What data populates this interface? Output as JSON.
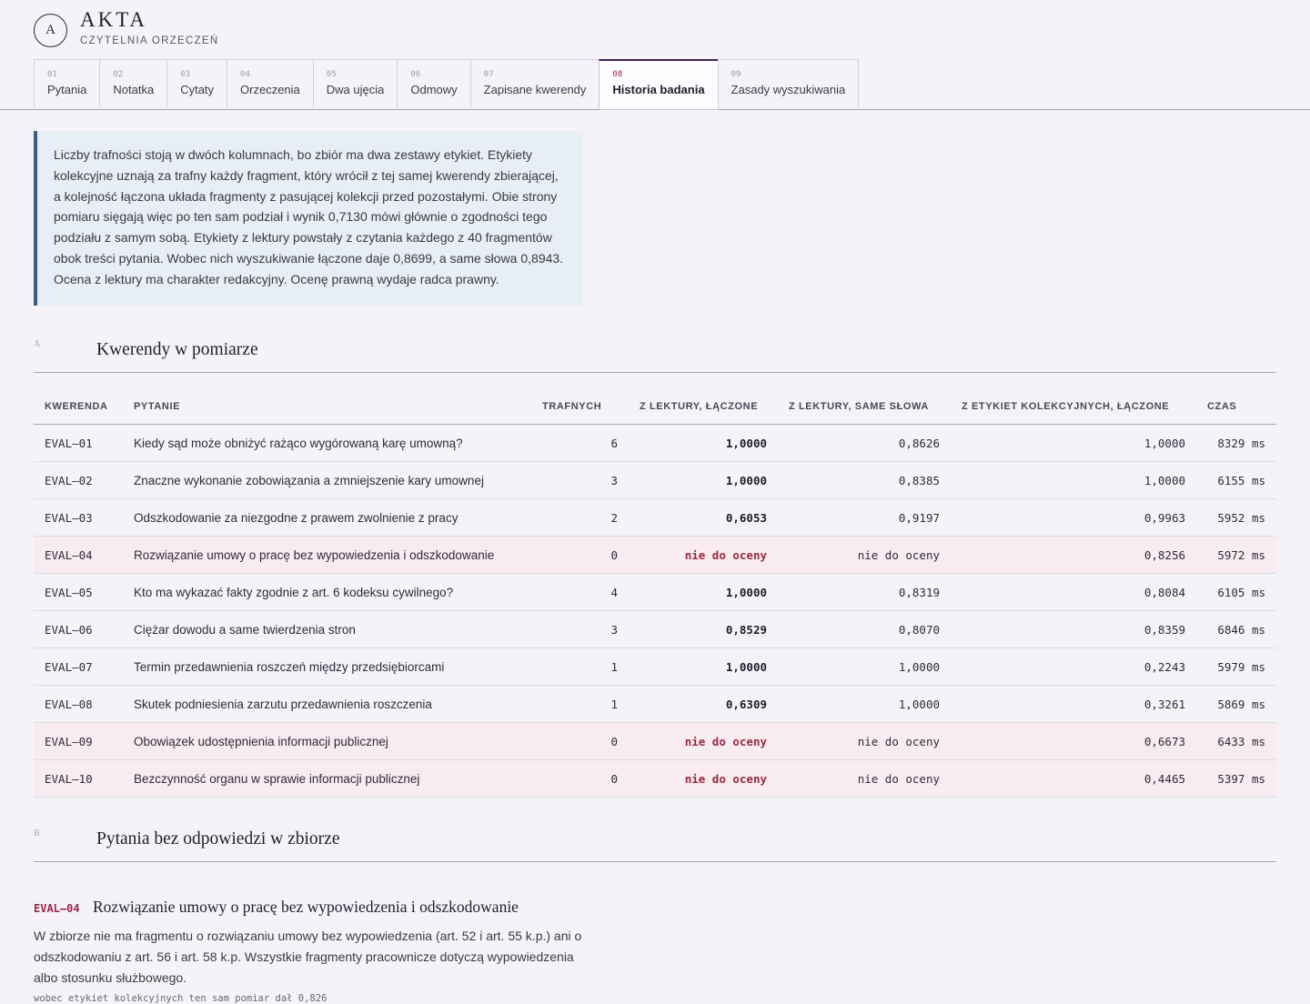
{
  "brand": {
    "logo_letter": "A",
    "name": "AKTA",
    "subtitle": "CZYTELNIA ORZECZEŃ"
  },
  "tabs": [
    {
      "num": "01",
      "label": "Pytania"
    },
    {
      "num": "02",
      "label": "Notatka"
    },
    {
      "num": "03",
      "label": "Cytaty"
    },
    {
      "num": "04",
      "label": "Orzeczenia"
    },
    {
      "num": "05",
      "label": "Dwa ujęcia"
    },
    {
      "num": "06",
      "label": "Odmowy"
    },
    {
      "num": "07",
      "label": "Zapisane kwerendy"
    },
    {
      "num": "08",
      "label": "Historia badania",
      "active": true
    },
    {
      "num": "09",
      "label": "Zasady wyszukiwania"
    }
  ],
  "info_note": "Liczby trafności stoją w dwóch kolumnach, bo zbiór ma dwa zestawy etykiet. Etykiety kolekcyjne uznają za trafny każdy fragment, który wrócił z tej samej kwerendy zbierającej, a kolejność łączona układa fragmenty z pasującej kolekcji przed pozostałymi. Obie strony pomiaru sięgają więc po ten sam podział i wynik 0,7130 mówi głównie o zgodności tego podziału z samym sobą. Etykiety z lektury powstały z czytania każdego z 40 fragmentów obok treści pytania. Wobec nich wyszukiwanie łączone daje 0,8699, a same słowa 0,8943. Ocena z lektury ma charakter redakcyjny. Ocenę prawną wydaje radca prawny.",
  "section_a": {
    "letter": "A",
    "title": "Kwerendy w pomiarze"
  },
  "table": {
    "columns": [
      "KWERENDA",
      "PYTANIE",
      "TRAFNYCH",
      "Z LEKTURY, ŁĄCZONE",
      "Z LEKTURY, SAME SŁOWA",
      "Z ETYKIET KOLEKCYJNYCH, ŁĄCZONE",
      "CZAS"
    ],
    "rows": [
      {
        "id": "EVAL–01",
        "question": "Kiedy sąd może obniżyć rażąco wygórowaną karę umowną?",
        "hits": "6",
        "read_combined": "1,0000",
        "read_words": "0,8626",
        "coll_combined": "1,0000",
        "time": "8329 ms",
        "na": false
      },
      {
        "id": "EVAL–02",
        "question": "Znaczne wykonanie zobowiązania a zmniejszenie kary umownej",
        "hits": "3",
        "read_combined": "1,0000",
        "read_words": "0,8385",
        "coll_combined": "1,0000",
        "time": "6155 ms",
        "na": false
      },
      {
        "id": "EVAL–03",
        "question": "Odszkodowanie za niezgodne z prawem zwolnienie z pracy",
        "hits": "2",
        "read_combined": "0,6053",
        "read_words": "0,9197",
        "coll_combined": "0,9963",
        "time": "5952 ms",
        "na": false
      },
      {
        "id": "EVAL–04",
        "question": "Rozwiązanie umowy o pracę bez wypowiedzenia i odszkodowanie",
        "hits": "0",
        "read_combined": "nie do oceny",
        "read_words": "nie do oceny",
        "coll_combined": "0,8256",
        "time": "5972 ms",
        "na": true
      },
      {
        "id": "EVAL–05",
        "question": "Kto ma wykazać fakty zgodnie z art. 6 kodeksu cywilnego?",
        "hits": "4",
        "read_combined": "1,0000",
        "read_words": "0,8319",
        "coll_combined": "0,8084",
        "time": "6105 ms",
        "na": false
      },
      {
        "id": "EVAL–06",
        "question": "Ciężar dowodu a same twierdzenia stron",
        "hits": "3",
        "read_combined": "0,8529",
        "read_words": "0,8070",
        "coll_combined": "0,8359",
        "time": "6846 ms",
        "na": false
      },
      {
        "id": "EVAL–07",
        "question": "Termin przedawnienia roszczeń między przedsiębiorcami",
        "hits": "1",
        "read_combined": "1,0000",
        "read_words": "1,0000",
        "coll_combined": "0,2243",
        "time": "5979 ms",
        "na": false
      },
      {
        "id": "EVAL–08",
        "question": "Skutek podniesienia zarzutu przedawnienia roszczenia",
        "hits": "1",
        "read_combined": "0,6309",
        "read_words": "1,0000",
        "coll_combined": "0,3261",
        "time": "5869 ms",
        "na": false
      },
      {
        "id": "EVAL–09",
        "question": "Obowiązek udostępnienia informacji publicznej",
        "hits": "0",
        "read_combined": "nie do oceny",
        "read_words": "nie do oceny",
        "coll_combined": "0,6673",
        "time": "6433 ms",
        "na": true
      },
      {
        "id": "EVAL–10",
        "question": "Bezczynność organu w sprawie informacji publicznej",
        "hits": "0",
        "read_combined": "nie do oceny",
        "read_words": "nie do oceny",
        "coll_combined": "0,4465",
        "time": "5397 ms",
        "na": true
      }
    ]
  },
  "section_b": {
    "letter": "B",
    "title": "Pytania bez odpowiedzi w zbiorze"
  },
  "unanswered": {
    "id": "EVAL–04",
    "title": "Rozwiązanie umowy o pracę bez wypowiedzenia i odszkodowanie",
    "body": "W zbiorze nie ma fragmentu o rozwiązaniu umowy bez wypowiedzenia (art. 52 i art. 55 k.p.) ani o odszkodowaniu z art. 56 i art. 58 k.p. Wszystkie fragmenty pracownicze dotyczą wypowiedzenia albo stosunku służbowego.",
    "note": "wobec etykiet kolekcyjnych ten sam pomiar dał 0,826"
  },
  "colors": {
    "accent": "#3a2455",
    "na_text": "#9a2a44",
    "na_row_bg": "#f8ecf0",
    "info_bg": "#e7eef6",
    "info_border": "#3d5f84"
  }
}
